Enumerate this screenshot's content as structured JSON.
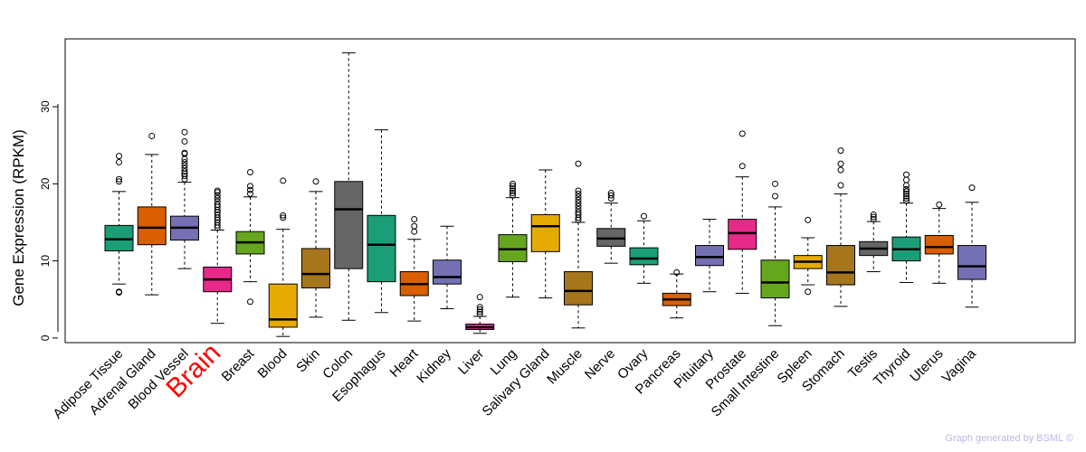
{
  "chart_data": {
    "type": "boxplot",
    "title": "",
    "ylabel": "Gene Expression (RPKM)",
    "xlabel": "",
    "ylim": [
      -0.6,
      38.8
    ],
    "yticks": [
      0,
      10,
      20,
      30
    ],
    "highlight_category": "Brain",
    "credit": "Graph generated by BSML ©",
    "categories": [
      "Adipose Tissue",
      "Adrenal Gland",
      "Blood Vessel",
      "Brain",
      "Breast",
      "Blood",
      "Skin",
      "Colon",
      "Esophagus",
      "Heart",
      "Kidney",
      "Liver",
      "Lung",
      "Salivary Gland",
      "Muscle",
      "Nerve",
      "Ovary",
      "Pancreas",
      "Pituitary",
      "Prostate",
      "Small Intestine",
      "Spleen",
      "Stomach",
      "Testis",
      "Thyroid",
      "Uterus",
      "Vagina"
    ],
    "colors": [
      "#1b9e77",
      "#d95f02",
      "#7570b3",
      "#e7298a",
      "#66a61e",
      "#e6ab02",
      "#a6761d",
      "#666666",
      "#1b9e77",
      "#d95f02",
      "#7570b3",
      "#e7298a",
      "#66a61e",
      "#e6ab02",
      "#a6761d",
      "#666666",
      "#1b9e77",
      "#d95f02",
      "#7570b3",
      "#e7298a",
      "#66a61e",
      "#e6ab02",
      "#a6761d",
      "#666666",
      "#1b9e77",
      "#d95f02",
      "#7570b3"
    ],
    "boxes": [
      {
        "min": 7.0,
        "q1": 11.3,
        "median": 12.8,
        "q3": 14.6,
        "max": 19.0,
        "outliers": [
          5.9,
          6.0,
          20.3,
          20.6,
          22.8,
          23.6
        ]
      },
      {
        "min": 5.6,
        "q1": 12.1,
        "median": 14.3,
        "q3": 17.0,
        "max": 23.8,
        "outliers": [
          26.2
        ]
      },
      {
        "min": 9.0,
        "q1": 12.7,
        "median": 14.3,
        "q3": 15.8,
        "max": 20.2,
        "outliers": [
          20.6,
          21.0,
          21.3,
          21.6,
          22.0,
          22.4,
          22.8,
          23.2,
          23.9,
          24.0,
          25.5,
          26.7
        ]
      },
      {
        "min": 1.9,
        "q1": 6.0,
        "median": 7.6,
        "q3": 9.2,
        "max": 14.0,
        "outliers": [
          14.3,
          14.6,
          15.0,
          15.3,
          15.6,
          16.0,
          16.3,
          16.6,
          17.0,
          17.3,
          17.7,
          18.1,
          18.5,
          18.9,
          19.1
        ]
      },
      {
        "min": 7.3,
        "q1": 10.9,
        "median": 12.4,
        "q3": 13.8,
        "max": 18.3,
        "outliers": [
          4.7,
          18.7,
          19.2,
          19.7,
          21.5
        ]
      },
      {
        "min": 0.2,
        "q1": 1.4,
        "median": 2.4,
        "q3": 7.0,
        "max": 14.1,
        "outliers": [
          15.6,
          15.9,
          20.4
        ]
      },
      {
        "min": 2.7,
        "q1": 6.5,
        "median": 8.3,
        "q3": 11.6,
        "max": 19.0,
        "outliers": [
          20.3
        ]
      },
      {
        "min": 2.3,
        "q1": 9.0,
        "median": 16.7,
        "q3": 20.3,
        "max": 37.0,
        "outliers": []
      },
      {
        "min": 3.3,
        "q1": 7.3,
        "median": 12.1,
        "q3": 15.9,
        "max": 27.0,
        "outliers": []
      },
      {
        "min": 2.2,
        "q1": 5.5,
        "median": 7.0,
        "q3": 8.6,
        "max": 12.8,
        "outliers": [
          13.8,
          14.5,
          15.4
        ]
      },
      {
        "min": 3.8,
        "q1": 7.0,
        "median": 7.9,
        "q3": 10.1,
        "max": 14.5,
        "outliers": []
      },
      {
        "min": 0.6,
        "q1": 1.1,
        "median": 1.4,
        "q3": 1.8,
        "max": 2.8,
        "outliers": [
          3.1,
          3.4,
          3.7,
          4.0,
          5.3
        ]
      },
      {
        "min": 5.3,
        "q1": 9.9,
        "median": 11.5,
        "q3": 13.4,
        "max": 18.2,
        "outliers": [
          18.5,
          18.8,
          19.1,
          19.4,
          19.7,
          20.0
        ]
      },
      {
        "min": 5.2,
        "q1": 11.2,
        "median": 14.5,
        "q3": 16.0,
        "max": 21.8,
        "outliers": []
      },
      {
        "min": 1.3,
        "q1": 4.3,
        "median": 6.1,
        "q3": 8.6,
        "max": 15.0,
        "outliers": [
          15.3,
          15.6,
          16.0,
          16.3,
          16.7,
          17.1,
          17.5,
          17.9,
          18.3,
          18.7,
          19.1,
          22.6
        ]
      },
      {
        "min": 9.7,
        "q1": 11.9,
        "median": 12.9,
        "q3": 14.2,
        "max": 17.5,
        "outliers": [
          18.1,
          18.5,
          18.8
        ]
      },
      {
        "min": 7.1,
        "q1": 9.5,
        "median": 10.3,
        "q3": 11.7,
        "max": 15.2,
        "outliers": [
          15.8
        ]
      },
      {
        "min": 2.6,
        "q1": 4.2,
        "median": 5.0,
        "q3": 5.8,
        "max": 8.3,
        "outliers": [
          8.5
        ]
      },
      {
        "min": 6.0,
        "q1": 9.4,
        "median": 10.5,
        "q3": 12.0,
        "max": 15.4,
        "outliers": []
      },
      {
        "min": 5.8,
        "q1": 11.5,
        "median": 13.6,
        "q3": 15.4,
        "max": 20.9,
        "outliers": [
          22.3,
          26.5
        ]
      },
      {
        "min": 1.6,
        "q1": 5.2,
        "median": 7.2,
        "q3": 10.1,
        "max": 17.0,
        "outliers": [
          18.4,
          20.0
        ]
      },
      {
        "min": 6.9,
        "q1": 9.0,
        "median": 9.9,
        "q3": 10.7,
        "max": 13.0,
        "outliers": [
          6.0,
          15.3
        ]
      },
      {
        "min": 4.1,
        "q1": 6.9,
        "median": 8.5,
        "q3": 12.0,
        "max": 18.7,
        "outliers": [
          19.8,
          21.8,
          22.6,
          24.3
        ]
      },
      {
        "min": 8.6,
        "q1": 10.7,
        "median": 11.6,
        "q3": 12.5,
        "max": 15.1,
        "outliers": [
          15.4,
          15.7,
          16.0
        ]
      },
      {
        "min": 7.2,
        "q1": 10.0,
        "median": 11.5,
        "q3": 13.1,
        "max": 17.5,
        "outliers": [
          17.8,
          18.1,
          18.4,
          18.7,
          19.0,
          19.3,
          19.8,
          20.5,
          21.2
        ]
      },
      {
        "min": 7.1,
        "q1": 10.9,
        "median": 11.8,
        "q3": 13.3,
        "max": 16.8,
        "outliers": [
          17.3
        ]
      },
      {
        "min": 4.0,
        "q1": 7.6,
        "median": 9.3,
        "q3": 12.0,
        "max": 17.6,
        "outliers": [
          19.5
        ]
      }
    ]
  }
}
